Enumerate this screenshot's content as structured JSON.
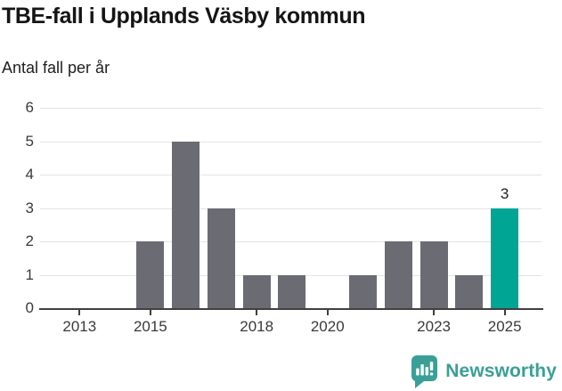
{
  "header": {
    "title": "TBE-fall i Upplands Väsby kommun",
    "subtitle": "Antal fall per år"
  },
  "chart_data": {
    "type": "bar",
    "title": "TBE-fall i Upplands Väsby kommun",
    "subtitle": "Antal fall per år",
    "ylabel": "Antal fall per år",
    "categories": [
      2012,
      2013,
      2014,
      2015,
      2016,
      2017,
      2018,
      2019,
      2020,
      2021,
      2022,
      2023,
      2024,
      2025
    ],
    "values": [
      0,
      0,
      0,
      2,
      5,
      3,
      1,
      1,
      0,
      1,
      2,
      2,
      1,
      3
    ],
    "ylim": [
      0,
      6
    ],
    "y_ticks": [
      0,
      1,
      2,
      3,
      4,
      5,
      6
    ],
    "x_tick_years": [
      2013,
      2015,
      2018,
      2020,
      2023,
      2025
    ],
    "grid": "horizontal",
    "legend": "none",
    "highlight_year": 2025,
    "annotations": [
      {
        "year": 2025,
        "text": "3"
      }
    ],
    "colors": {
      "bar": "#6b6b73",
      "highlight": "#00a594",
      "grid": "#e4e4e6",
      "axis": "#404040",
      "tick_text": "#3a3a3a",
      "annotation_text": "#222222"
    }
  },
  "branding": {
    "name": "Newsworthy",
    "color": "#3aa097",
    "icon": "newsworthy-chart-bubble-icon"
  }
}
